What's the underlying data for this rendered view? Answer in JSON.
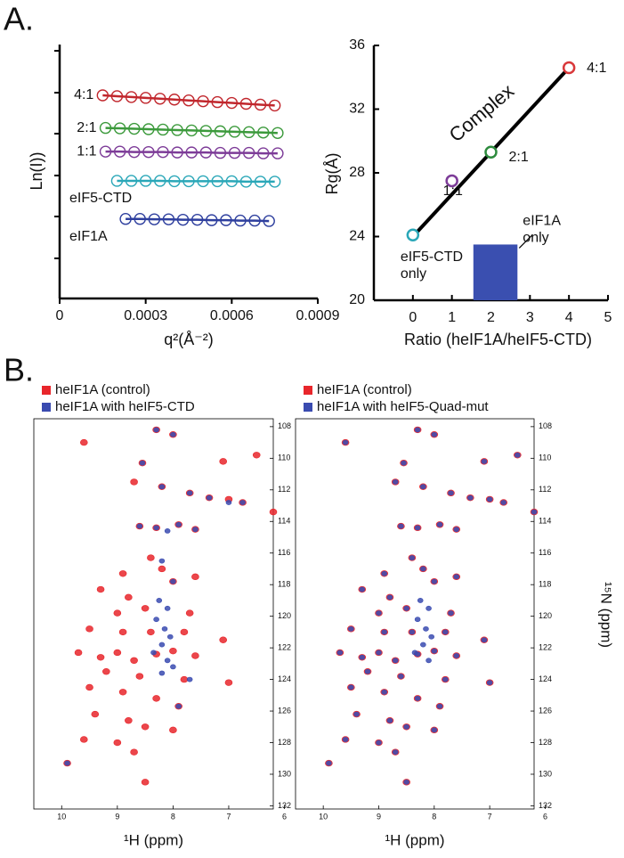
{
  "panel_labels": [
    "A.",
    "B."
  ],
  "chart_data": [
    {
      "type": "line",
      "xlabel": "q²(Å⁻²)",
      "ylabel": "Ln(I))",
      "xlim": [
        0,
        0.0009
      ],
      "xticks": [
        0,
        0.0003,
        0.0006,
        0.0009
      ],
      "ylim": [
        0,
        6
      ],
      "series": [
        {
          "name": "4:1",
          "color": "#c1272d",
          "x": [
            0.00015,
            0.0002,
            0.00025,
            0.0003,
            0.00035,
            0.0004,
            0.00045,
            0.0005,
            0.00055,
            0.0006,
            0.00065,
            0.0007,
            0.00075
          ],
          "values": [
            4.8,
            4.78,
            4.76,
            4.74,
            4.72,
            4.7,
            4.68,
            4.66,
            4.64,
            4.62,
            4.6,
            4.58,
            4.56
          ]
        },
        {
          "name": "2:1",
          "color": "#3c9a3c",
          "x": [
            0.00016,
            0.00021,
            0.00026,
            0.00031,
            0.00036,
            0.00041,
            0.00046,
            0.00051,
            0.00056,
            0.00061,
            0.00066,
            0.00071,
            0.00076
          ],
          "values": [
            4.03,
            4.02,
            4.01,
            4.0,
            3.99,
            3.98,
            3.97,
            3.96,
            3.95,
            3.94,
            3.93,
            3.92,
            3.91
          ]
        },
        {
          "name": "1:1",
          "color": "#7d3c98",
          "x": [
            0.00016,
            0.00021,
            0.00026,
            0.00031,
            0.00036,
            0.00041,
            0.00046,
            0.00051,
            0.00056,
            0.00061,
            0.00066,
            0.00071,
            0.00076
          ],
          "values": [
            3.47,
            3.47,
            3.46,
            3.46,
            3.46,
            3.45,
            3.45,
            3.45,
            3.44,
            3.44,
            3.44,
            3.43,
            3.43
          ]
        },
        {
          "name": "eIF5-CTD",
          "color": "#2aa7b8",
          "x": [
            0.0002,
            0.00025,
            0.0003,
            0.00035,
            0.0004,
            0.00045,
            0.0005,
            0.00055,
            0.0006,
            0.00065,
            0.0007,
            0.00075
          ],
          "values": [
            2.78,
            2.78,
            2.78,
            2.78,
            2.77,
            2.77,
            2.77,
            2.77,
            2.77,
            2.76,
            2.76,
            2.76
          ]
        },
        {
          "name": "eIF1A",
          "color": "#2e3f9e",
          "x": [
            0.00023,
            0.00028,
            0.00033,
            0.00038,
            0.00043,
            0.00048,
            0.00053,
            0.00058,
            0.00063,
            0.00068,
            0.00073
          ],
          "values": [
            1.88,
            1.88,
            1.87,
            1.87,
            1.86,
            1.86,
            1.85,
            1.85,
            1.84,
            1.84,
            1.83
          ]
        }
      ]
    },
    {
      "type": "scatter",
      "xlabel": "Ratio (heIF1A/heIF5-CTD)",
      "ylabel": "Rg(Å)",
      "xlim": [
        -1,
        5
      ],
      "xticks": [
        0,
        1,
        2,
        3,
        4,
        5
      ],
      "ylim": [
        20,
        36
      ],
      "yticks": [
        20,
        24,
        28,
        32,
        36
      ],
      "points": {
        "x": [
          0,
          1,
          2,
          4
        ],
        "values": [
          24.1,
          27.5,
          29.3,
          34.6
        ],
        "colors": [
          "#2aa7b8",
          "#7d3c98",
          "#2e8b3e",
          "#d9383a"
        ],
        "labels": [
          [
            "eIF5-CTD",
            "only"
          ],
          "1:1",
          "2:1",
          "4:1"
        ]
      },
      "fit": {
        "name": "Complex",
        "color": "#000000",
        "x": [
          0,
          4
        ],
        "values": [
          24,
          34.6
        ]
      },
      "bar": {
        "label": [
          "eIF1A",
          "only"
        ],
        "color": "#3a4fb0",
        "x": [
          1.55,
          2.68
        ],
        "value": 23.5
      }
    },
    {
      "type": "scatter",
      "box": true,
      "legend": "above",
      "xlabel": "¹H (ppm)",
      "xlim": [
        10.5,
        6.2
      ],
      "xticks": [
        10,
        9,
        8,
        7,
        6
      ],
      "ylim": [
        107.5,
        132.2
      ],
      "yticks": [
        108,
        110,
        112,
        114,
        116,
        118,
        120,
        122,
        124,
        126,
        128,
        130,
        132
      ],
      "series": [
        {
          "name": "heIF1A (control)",
          "color": "#e8262b",
          "x": [
            9.6,
            8.3,
            8.0,
            8.55,
            7.1,
            6.5,
            8.7,
            8.2,
            7.7,
            7.35,
            7.0,
            6.75,
            6.2,
            8.6,
            8.3,
            7.9,
            7.6,
            8.4,
            8.2,
            7.6,
            8.9,
            8.0,
            8.8,
            9.3,
            9.0,
            8.5,
            7.7,
            9.5,
            8.9,
            8.4,
            7.8,
            7.1,
            9.7,
            9.3,
            9.0,
            8.7,
            8.3,
            8.0,
            7.6,
            9.2,
            8.6,
            7.8,
            7.0,
            9.5,
            8.9,
            8.3,
            7.9,
            9.4,
            8.8,
            8.5,
            8.0,
            9.6,
            9.0,
            8.7,
            9.9,
            8.5
          ],
          "values": [
            109,
            108.2,
            108.5,
            110.3,
            110.2,
            109.8,
            111.5,
            111.8,
            112.2,
            112.5,
            112.6,
            112.8,
            113.4,
            114.3,
            114.4,
            114.2,
            114.5,
            116.3,
            117,
            117.5,
            117.3,
            117.8,
            118.8,
            118.3,
            119.8,
            119.5,
            119.8,
            120.8,
            121,
            121,
            121,
            121.5,
            122.3,
            122.6,
            122.3,
            122.8,
            122.4,
            122.2,
            122.5,
            123.5,
            123.8,
            124,
            124.2,
            124.5,
            124.8,
            125.2,
            125.7,
            126.2,
            126.6,
            127,
            127.2,
            127.8,
            128,
            128.6,
            129.3,
            130.5
          ]
        },
        {
          "name": "heIF1A with heIF5-CTD",
          "color": "#3a4bb0",
          "x": [
            8.3,
            8.0,
            8.55,
            8.2,
            7.7,
            7.35,
            7.0,
            6.75,
            8.6,
            8.3,
            7.9,
            7.6,
            8.2,
            8.0,
            8.25,
            8.1,
            8.3,
            8.15,
            8.05,
            8.2,
            8.35,
            8.1,
            8.0,
            8.2,
            7.7,
            7.9,
            9.9,
            8.1
          ],
          "values": [
            108.2,
            108.5,
            110.3,
            111.8,
            112.2,
            112.5,
            112.8,
            112.8,
            114.3,
            114.4,
            114.2,
            114.5,
            116.5,
            117.8,
            119,
            119.5,
            120.2,
            120.8,
            121.3,
            121.8,
            122.3,
            122.8,
            123.2,
            123.6,
            124,
            125.7,
            129.3,
            114.6
          ]
        }
      ]
    },
    {
      "type": "scatter",
      "box": true,
      "legend": "above",
      "xlabel": "¹H (ppm)",
      "ylabel": "¹⁵N (ppm)",
      "xlim": [
        10.5,
        6.2
      ],
      "xticks": [
        10,
        9,
        8,
        7,
        6
      ],
      "ylim": [
        107.5,
        132.2
      ],
      "yticks": [
        108,
        110,
        112,
        114,
        116,
        118,
        120,
        122,
        124,
        126,
        128,
        130,
        132
      ],
      "series": [
        {
          "name": "heIF1A (control)",
          "color": "#e8262b",
          "x": [
            9.6,
            8.3,
            8.0,
            8.55,
            7.1,
            6.5,
            8.7,
            8.2,
            7.7,
            7.35,
            7.0,
            6.75,
            6.2,
            8.6,
            8.3,
            7.9,
            7.6,
            8.4,
            8.2,
            7.6,
            8.9,
            8.0,
            8.8,
            9.3,
            9.0,
            8.5,
            7.7,
            9.5,
            8.9,
            8.4,
            7.8,
            7.1,
            9.7,
            9.3,
            9.0,
            8.7,
            8.3,
            8.0,
            7.6,
            9.2,
            8.6,
            7.8,
            7.0,
            9.5,
            8.9,
            8.3,
            7.9,
            9.4,
            8.8,
            8.5,
            8.0,
            9.6,
            9.0,
            8.7,
            9.9,
            8.5
          ],
          "values": [
            109,
            108.2,
            108.5,
            110.3,
            110.2,
            109.8,
            111.5,
            111.8,
            112.2,
            112.5,
            112.6,
            112.8,
            113.4,
            114.3,
            114.4,
            114.2,
            114.5,
            116.3,
            117,
            117.5,
            117.3,
            117.8,
            118.8,
            118.3,
            119.8,
            119.5,
            119.8,
            120.8,
            121,
            121,
            121,
            121.5,
            122.3,
            122.6,
            122.3,
            122.8,
            122.4,
            122.2,
            122.5,
            123.5,
            123.8,
            124,
            124.2,
            124.5,
            124.8,
            125.2,
            125.7,
            126.2,
            126.6,
            127,
            127.2,
            127.8,
            128,
            128.6,
            129.3,
            130.5
          ]
        },
        {
          "name": "heIF1A with heIF5-Quad-mut",
          "color": "#3a4bb0",
          "x": [
            9.6,
            8.3,
            8.0,
            8.55,
            7.1,
            6.5,
            8.7,
            8.2,
            7.7,
            7.35,
            7.0,
            6.75,
            6.2,
            8.6,
            8.3,
            7.9,
            7.6,
            8.4,
            8.2,
            7.6,
            8.9,
            8.0,
            8.8,
            9.3,
            9.0,
            8.5,
            7.7,
            9.5,
            8.9,
            8.4,
            7.8,
            7.1,
            9.7,
            9.3,
            9.0,
            8.7,
            8.3,
            8.0,
            7.6,
            9.2,
            8.6,
            7.8,
            7.0,
            9.5,
            8.9,
            8.3,
            7.9,
            9.4,
            8.8,
            8.5,
            8.0,
            9.6,
            9.0,
            8.7,
            9.9,
            8.5,
            8.25,
            8.1,
            8.3,
            8.15,
            8.05,
            8.2,
            8.35,
            8.1
          ],
          "values": [
            109,
            108.2,
            108.5,
            110.3,
            110.2,
            109.8,
            111.5,
            111.8,
            112.2,
            112.5,
            112.6,
            112.8,
            113.4,
            114.3,
            114.4,
            114.2,
            114.5,
            116.3,
            117,
            117.5,
            117.3,
            117.8,
            118.8,
            118.3,
            119.8,
            119.5,
            119.8,
            120.8,
            121,
            121,
            121,
            121.5,
            122.3,
            122.6,
            122.3,
            122.8,
            122.4,
            122.2,
            122.5,
            123.5,
            123.8,
            124,
            124.2,
            124.5,
            124.8,
            125.2,
            125.7,
            126.2,
            126.6,
            127,
            127.2,
            127.8,
            128,
            128.6,
            129.3,
            130.5,
            119,
            119.5,
            120.2,
            120.8,
            121.3,
            121.8,
            122.3,
            122.8
          ]
        }
      ]
    }
  ]
}
